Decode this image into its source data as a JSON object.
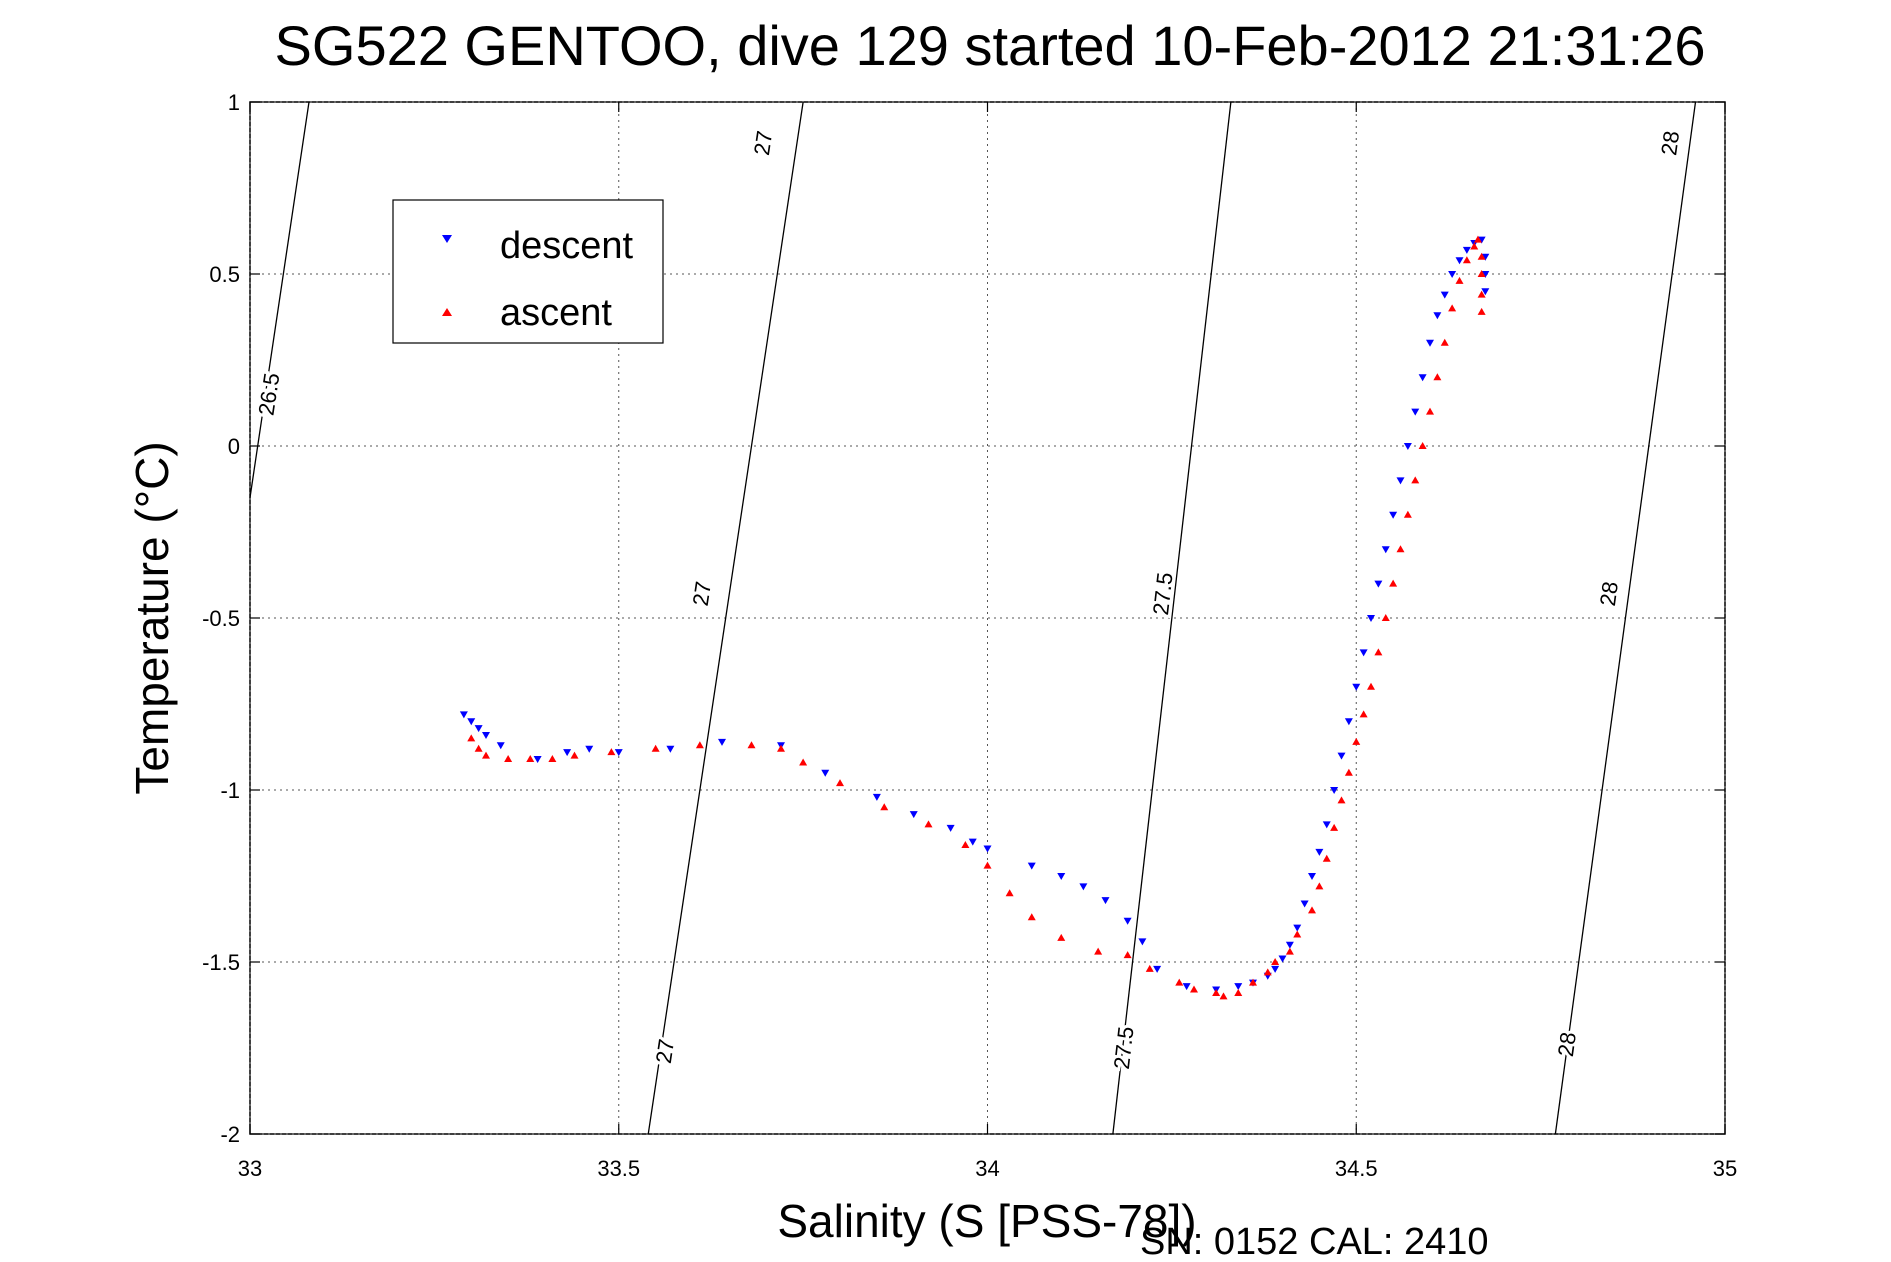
{
  "chart_data": {
    "type": "scatter",
    "title": "SG522 GENTOO, dive 129 started 10-Feb-2012 21:31:26",
    "xlabel": "Salinity (S [PSS-78])",
    "ylabel": "Temperature (°C)",
    "footer": "SN: 0152  CAL: 2410",
    "xlim": [
      33,
      35
    ],
    "ylim": [
      -2,
      1
    ],
    "xticks": [
      "33",
      "33.5",
      "34",
      "34.5",
      "35"
    ],
    "yticks": [
      "1",
      "0.5",
      "0",
      "-0.5",
      "-1",
      "-1.5",
      "-2"
    ],
    "grid": true,
    "legend_position": "top-left",
    "series": [
      {
        "name": "descent",
        "marker": "triangle-down",
        "color": "#0000ff",
        "points": [
          [
            33.29,
            -0.78
          ],
          [
            33.3,
            -0.8
          ],
          [
            33.31,
            -0.82
          ],
          [
            33.32,
            -0.84
          ],
          [
            33.34,
            -0.87
          ],
          [
            33.39,
            -0.91
          ],
          [
            33.43,
            -0.89
          ],
          [
            33.46,
            -0.88
          ],
          [
            33.5,
            -0.89
          ],
          [
            33.57,
            -0.88
          ],
          [
            33.64,
            -0.86
          ],
          [
            33.72,
            -0.87
          ],
          [
            33.78,
            -0.95
          ],
          [
            33.85,
            -1.02
          ],
          [
            33.9,
            -1.07
          ],
          [
            33.95,
            -1.11
          ],
          [
            33.98,
            -1.15
          ],
          [
            34.0,
            -1.17
          ],
          [
            34.06,
            -1.22
          ],
          [
            34.1,
            -1.25
          ],
          [
            34.13,
            -1.28
          ],
          [
            34.16,
            -1.32
          ],
          [
            34.19,
            -1.38
          ],
          [
            34.21,
            -1.44
          ],
          [
            34.23,
            -1.52
          ],
          [
            34.27,
            -1.57
          ],
          [
            34.31,
            -1.58
          ],
          [
            34.34,
            -1.57
          ],
          [
            34.36,
            -1.56
          ],
          [
            34.38,
            -1.54
          ],
          [
            34.39,
            -1.52
          ],
          [
            34.4,
            -1.49
          ],
          [
            34.41,
            -1.45
          ],
          [
            34.42,
            -1.4
          ],
          [
            34.43,
            -1.33
          ],
          [
            34.44,
            -1.25
          ],
          [
            34.45,
            -1.18
          ],
          [
            34.46,
            -1.1
          ],
          [
            34.47,
            -1.0
          ],
          [
            34.48,
            -0.9
          ],
          [
            34.49,
            -0.8
          ],
          [
            34.5,
            -0.7
          ],
          [
            34.51,
            -0.6
          ],
          [
            34.52,
            -0.5
          ],
          [
            34.53,
            -0.4
          ],
          [
            34.54,
            -0.3
          ],
          [
            34.55,
            -0.2
          ],
          [
            34.56,
            -0.1
          ],
          [
            34.57,
            0.0
          ],
          [
            34.58,
            0.1
          ],
          [
            34.59,
            0.2
          ],
          [
            34.6,
            0.3
          ],
          [
            34.61,
            0.38
          ],
          [
            34.62,
            0.44
          ],
          [
            34.63,
            0.5
          ],
          [
            34.64,
            0.54
          ],
          [
            34.65,
            0.57
          ],
          [
            34.66,
            0.59
          ],
          [
            34.67,
            0.6
          ],
          [
            34.675,
            0.55
          ],
          [
            34.675,
            0.5
          ],
          [
            34.675,
            0.45
          ]
        ]
      },
      {
        "name": "ascent",
        "marker": "triangle-up",
        "color": "#ff0000",
        "points": [
          [
            33.3,
            -0.85
          ],
          [
            33.31,
            -0.88
          ],
          [
            33.32,
            -0.9
          ],
          [
            33.35,
            -0.91
          ],
          [
            33.38,
            -0.91
          ],
          [
            33.41,
            -0.91
          ],
          [
            33.44,
            -0.9
          ],
          [
            33.49,
            -0.89
          ],
          [
            33.55,
            -0.88
          ],
          [
            33.61,
            -0.87
          ],
          [
            33.68,
            -0.87
          ],
          [
            33.72,
            -0.88
          ],
          [
            33.75,
            -0.92
          ],
          [
            33.8,
            -0.98
          ],
          [
            33.86,
            -1.05
          ],
          [
            33.92,
            -1.1
          ],
          [
            33.97,
            -1.16
          ],
          [
            34.0,
            -1.22
          ],
          [
            34.03,
            -1.3
          ],
          [
            34.06,
            -1.37
          ],
          [
            34.1,
            -1.43
          ],
          [
            34.15,
            -1.47
          ],
          [
            34.19,
            -1.48
          ],
          [
            34.22,
            -1.52
          ],
          [
            34.26,
            -1.56
          ],
          [
            34.28,
            -1.58
          ],
          [
            34.31,
            -1.59
          ],
          [
            34.32,
            -1.6
          ],
          [
            34.34,
            -1.59
          ],
          [
            34.36,
            -1.56
          ],
          [
            34.38,
            -1.53
          ],
          [
            34.39,
            -1.5
          ],
          [
            34.41,
            -1.47
          ],
          [
            34.42,
            -1.42
          ],
          [
            34.44,
            -1.35
          ],
          [
            34.45,
            -1.28
          ],
          [
            34.46,
            -1.2
          ],
          [
            34.47,
            -1.11
          ],
          [
            34.48,
            -1.03
          ],
          [
            34.49,
            -0.95
          ],
          [
            34.5,
            -0.86
          ],
          [
            34.51,
            -0.78
          ],
          [
            34.52,
            -0.7
          ],
          [
            34.53,
            -0.6
          ],
          [
            34.54,
            -0.5
          ],
          [
            34.55,
            -0.4
          ],
          [
            34.56,
            -0.3
          ],
          [
            34.57,
            -0.2
          ],
          [
            34.58,
            -0.1
          ],
          [
            34.59,
            0.0
          ],
          [
            34.6,
            0.1
          ],
          [
            34.61,
            0.2
          ],
          [
            34.62,
            0.3
          ],
          [
            34.63,
            0.4
          ],
          [
            34.64,
            0.48
          ],
          [
            34.65,
            0.54
          ],
          [
            34.66,
            0.58
          ],
          [
            34.665,
            0.6
          ],
          [
            34.67,
            0.55
          ],
          [
            34.67,
            0.5
          ],
          [
            34.67,
            0.44
          ],
          [
            34.67,
            0.39
          ]
        ]
      }
    ],
    "contours": [
      {
        "label": "26.5",
        "points": [
          [
            33.0,
            -0.15
          ],
          [
            33.08,
            1.0
          ]
        ],
        "label_positions": [
          [
            33.028,
            0.15
          ]
        ]
      },
      {
        "label": "27",
        "points": [
          [
            33.54,
            -2.0
          ],
          [
            33.75,
            1.0
          ]
        ],
        "label_positions": [
          [
            33.565,
            -1.76
          ],
          [
            33.615,
            -0.43
          ],
          [
            33.698,
            0.88
          ]
        ]
      },
      {
        "label": "27.5",
        "points": [
          [
            34.17,
            -2.0
          ],
          [
            34.33,
            1.0
          ]
        ],
        "label_positions": [
          [
            34.187,
            -1.75
          ],
          [
            34.24,
            -0.43
          ]
        ]
      },
      {
        "label": "28",
        "points": [
          [
            34.77,
            -2.0
          ],
          [
            34.96,
            1.0
          ]
        ],
        "label_positions": [
          [
            34.788,
            -1.74
          ],
          [
            34.845,
            -0.43
          ],
          [
            34.928,
            0.88
          ]
        ]
      }
    ]
  }
}
